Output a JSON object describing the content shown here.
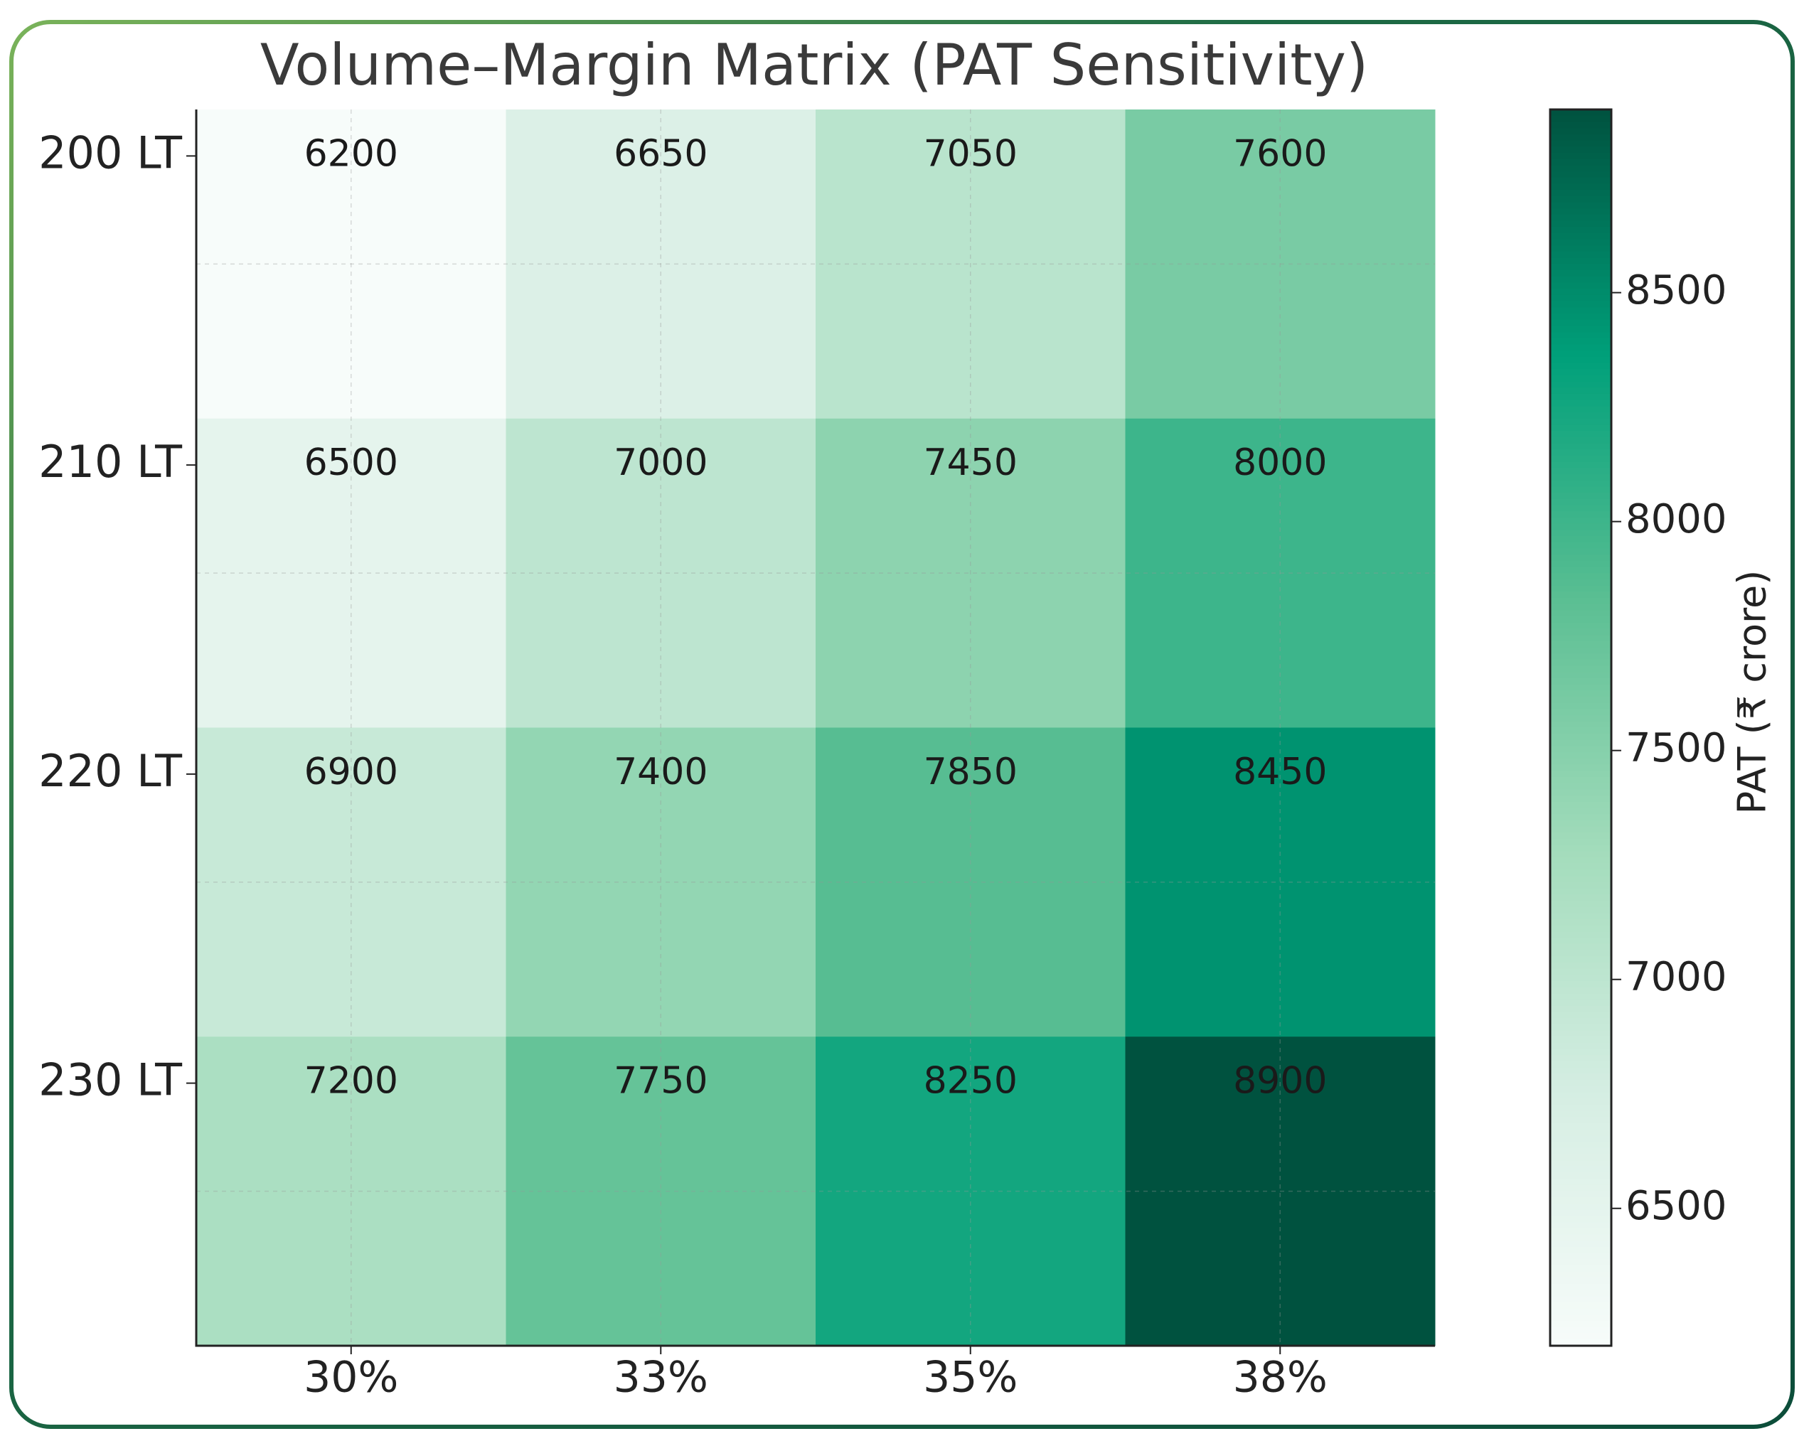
{
  "chart_data": {
    "type": "heatmap",
    "title": "Volume–Margin Matrix (PAT Sensitivity)",
    "x_categories": [
      "30%",
      "33%",
      "35%",
      "38%"
    ],
    "y_categories": [
      "200 LT",
      "210 LT",
      "220 LT",
      "230 LT"
    ],
    "z": [
      [
        6200,
        6650,
        7050,
        7600
      ],
      [
        6500,
        7000,
        7450,
        8000
      ],
      [
        6900,
        7400,
        7850,
        8450
      ],
      [
        7200,
        7750,
        8250,
        8900
      ]
    ],
    "colorbar_label": "PAT (₹ crore)",
    "clim": [
      6200,
      8900
    ],
    "cticks": [
      6500,
      7000,
      7500,
      8000,
      8500
    ],
    "colormap": [
      "#f7fcfa",
      "#d6eee3",
      "#a3dcbc",
      "#5cbf93",
      "#00a07a",
      "#00523f"
    ],
    "grid": true
  }
}
